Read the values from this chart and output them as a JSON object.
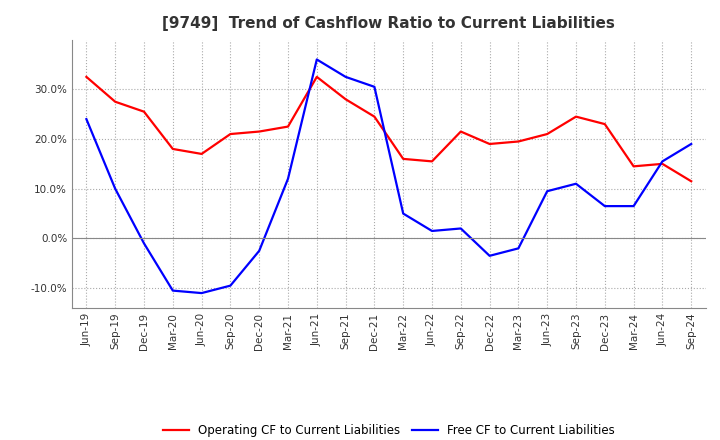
{
  "title": "[9749]  Trend of Cashflow Ratio to Current Liabilities",
  "x_labels": [
    "Jun-19",
    "Sep-19",
    "Dec-19",
    "Mar-20",
    "Jun-20",
    "Sep-20",
    "Dec-20",
    "Mar-21",
    "Jun-21",
    "Sep-21",
    "Dec-21",
    "Mar-22",
    "Jun-22",
    "Sep-22",
    "Dec-22",
    "Mar-23",
    "Jun-23",
    "Sep-23",
    "Dec-23",
    "Mar-24",
    "Jun-24",
    "Sep-24"
  ],
  "operating_cf": [
    32.5,
    27.5,
    25.5,
    18.0,
    17.0,
    21.0,
    21.5,
    22.5,
    32.5,
    28.0,
    24.5,
    16.0,
    15.5,
    21.5,
    19.0,
    19.5,
    21.0,
    24.5,
    23.0,
    14.5,
    15.0,
    11.5
  ],
  "free_cf": [
    24.0,
    10.0,
    -1.0,
    -10.5,
    -11.0,
    -9.5,
    -2.5,
    12.0,
    36.0,
    32.5,
    30.5,
    5.0,
    1.5,
    2.0,
    -3.5,
    -2.0,
    9.5,
    11.0,
    6.5,
    6.5,
    15.5,
    19.0
  ],
  "operating_color": "#ff0000",
  "free_color": "#0000ff",
  "ylim": [
    -14,
    40
  ],
  "yticks": [
    -10.0,
    0.0,
    10.0,
    20.0,
    30.0
  ],
  "background_color": "#ffffff",
  "grid_color": "#aaaaaa",
  "title_color": "#333333",
  "legend_operating": "Operating CF to Current Liabilities",
  "legend_free": "Free CF to Current Liabilities",
  "title_fontsize": 11,
  "tick_fontsize": 7.5
}
